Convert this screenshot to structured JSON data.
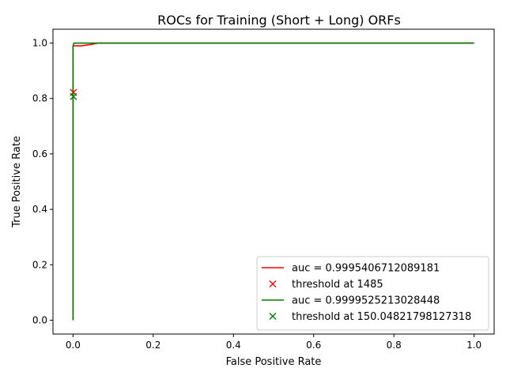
{
  "chart_data": {
    "type": "line",
    "title": "ROCs for Training (Short + Long) ORFs",
    "xlabel": "False Positive Rate",
    "ylabel": "True Positive Rate",
    "xlim": [
      -0.05,
      1.05
    ],
    "ylim": [
      -0.05,
      1.05
    ],
    "xticks": [
      0.0,
      0.2,
      0.4,
      0.6,
      0.8,
      1.0
    ],
    "xtick_labels": [
      "0.0",
      "0.2",
      "0.4",
      "0.6",
      "0.8",
      "1.0"
    ],
    "yticks": [
      0.0,
      0.2,
      0.4,
      0.6,
      0.8,
      1.0
    ],
    "ytick_labels": [
      "0.0",
      "0.2",
      "0.4",
      "0.6",
      "0.8",
      "1.0"
    ],
    "grid": false,
    "legend_position": "lower-right",
    "series": [
      {
        "kind": "line",
        "name": "auc = 0.9995406712089181",
        "color": "#ff0000",
        "x": [
          0.0,
          0.0,
          0.001,
          0.002,
          0.02,
          0.03,
          0.045,
          0.055,
          0.065,
          0.07,
          1.0
        ],
        "y": [
          0.0,
          0.99,
          0.99,
          0.99,
          0.99,
          0.992,
          0.995,
          0.998,
          1.0,
          1.0,
          1.0
        ]
      },
      {
        "kind": "marker",
        "name": "threshold at 1485",
        "color": "#ff0000",
        "x": [
          0.001
        ],
        "y": [
          0.822
        ]
      },
      {
        "kind": "line",
        "name": "auc = 0.9999525213028448",
        "color": "#008000",
        "x": [
          0.0,
          0.0,
          0.001,
          0.002,
          1.0
        ],
        "y": [
          0.0,
          0.985,
          0.995,
          1.0,
          1.0
        ]
      },
      {
        "kind": "marker",
        "name": "threshold at 150.04821798127318",
        "color": "#008000",
        "x": [
          0.001
        ],
        "y": [
          0.807
        ]
      }
    ]
  }
}
